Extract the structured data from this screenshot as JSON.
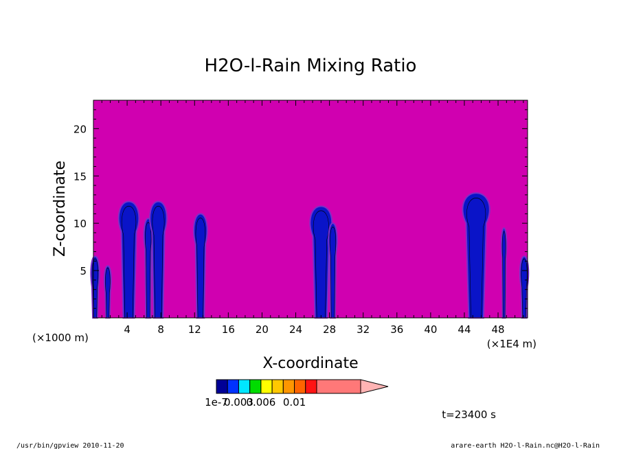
{
  "chart_data": {
    "type": "heatmap",
    "title": "H2O-l-Rain Mixing Ratio",
    "xlabel": "X-coordinate",
    "ylabel": "Z-coordinate",
    "x_unit_left": "(×1000 m)",
    "x_unit_right": "(×1E4 m)",
    "xlim": [
      0,
      51.5
    ],
    "ylim": [
      0,
      23
    ],
    "x_ticks": [
      4,
      8,
      12,
      16,
      20,
      24,
      28,
      32,
      36,
      40,
      44,
      48
    ],
    "x_tick_labels": [
      "4",
      "8",
      "12",
      "16",
      "20",
      "24",
      "28",
      "32",
      "36",
      "40",
      "44",
      "48"
    ],
    "y_ticks": [
      5,
      10,
      15,
      20
    ],
    "y_tick_labels": [
      "5",
      "10",
      "15",
      "20"
    ],
    "background_color": "#d000b0",
    "cloud_color": "#0a14c8",
    "cloud_edge_color": "#7a30c8",
    "time_label": "t=23400 s",
    "colorbar": {
      "colors": [
        "#000096",
        "#0032ff",
        "#00e6ff",
        "#00dc00",
        "#ffff00",
        "#ffc800",
        "#ff9600",
        "#ff6400",
        "#ff1414",
        "#ff7878"
      ],
      "extension_color": "#ffb4b4",
      "labels": [
        {
          "text": "1e-7",
          "at_level": 0
        },
        {
          "text": "0.003",
          "at_level": 2
        },
        {
          "text": "0.006",
          "at_level": 4
        },
        {
          "text": "0.01",
          "at_level": 7
        }
      ]
    },
    "clouds": [
      {
        "x_center": 0.2,
        "z_top": 6.5,
        "half_width": 0.5
      },
      {
        "x_center": 1.7,
        "z_top": 5.5,
        "half_width": 0.4
      },
      {
        "x_center": 4.2,
        "z_top": 12.3,
        "half_width": 1.2
      },
      {
        "x_center": 6.5,
        "z_top": 10.5,
        "half_width": 0.5
      },
      {
        "x_center": 7.7,
        "z_top": 12.3,
        "half_width": 1.0
      },
      {
        "x_center": 12.7,
        "z_top": 11.0,
        "half_width": 0.8
      },
      {
        "x_center": 27.0,
        "z_top": 11.8,
        "half_width": 1.3
      },
      {
        "x_center": 28.4,
        "z_top": 10.0,
        "half_width": 0.5
      },
      {
        "x_center": 45.4,
        "z_top": 13.2,
        "half_width": 1.6
      },
      {
        "x_center": 48.7,
        "z_top": 9.5,
        "half_width": 0.3
      },
      {
        "x_center": 51.1,
        "z_top": 6.5,
        "half_width": 0.5
      }
    ]
  },
  "footer": {
    "left": "/usr/bin/gpview  2010-11-20",
    "right": "arare-earth_H2O-l-Rain.nc@H2O-l-Rain"
  }
}
